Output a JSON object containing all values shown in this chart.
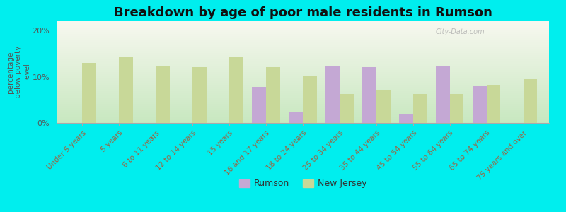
{
  "title": "Breakdown by age of poor male residents in Rumson",
  "ylabel": "percentage\nbelow poverty\nlevel",
  "categories": [
    "Under 5 years",
    "5 years",
    "6 to 11 years",
    "12 to 14 years",
    "15 years",
    "16 and 17 years",
    "18 to 24 years",
    "25 to 34 years",
    "35 to 44 years",
    "45 to 54 years",
    "55 to 64 years",
    "65 to 74 years",
    "75 years and over"
  ],
  "rumson_values": [
    0,
    0,
    0,
    0,
    0,
    7.8,
    2.5,
    12.2,
    12.0,
    2.0,
    12.3,
    8.0,
    0
  ],
  "nj_values": [
    13.0,
    14.2,
    12.2,
    12.0,
    14.3,
    12.0,
    10.3,
    6.2,
    7.0,
    6.2,
    6.2,
    8.2,
    9.5
  ],
  "rumson_color": "#c4a8d4",
  "nj_color": "#c8d898",
  "background_color": "#00eeee",
  "plot_bg_top": "#f8f8f0",
  "plot_bg_bottom": "#c8e8c0",
  "ylim": [
    0,
    22
  ],
  "ytick_vals": [
    0,
    10,
    20
  ],
  "ytick_labels": [
    "0%",
    "10%",
    "20%"
  ],
  "title_fontsize": 13,
  "legend_labels": [
    "Rumson",
    "New Jersey"
  ],
  "bar_width": 0.38,
  "watermark": "City-Data.com",
  "tick_color": "#996644",
  "ylabel_color": "#555555"
}
